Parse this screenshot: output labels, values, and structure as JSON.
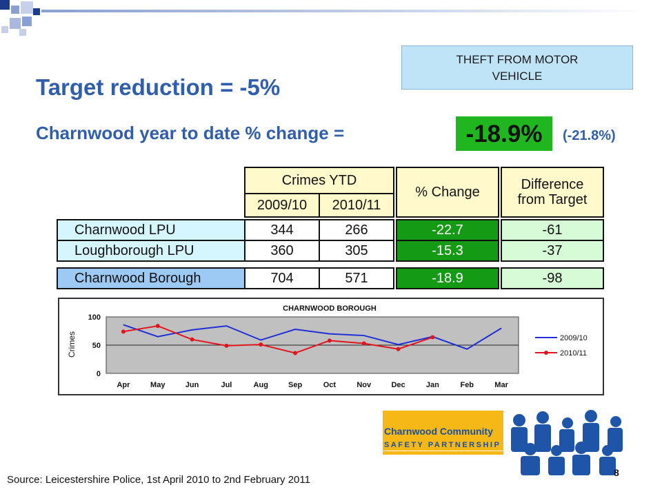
{
  "header": {
    "title_line1": "THEFT FROM MOTOR",
    "title_line2": "VEHICLE",
    "target": "Target reduction = -5%",
    "ytd_label": "Charnwood year to date % change =",
    "ytd_value": "-18.9%",
    "ytd_prior": "(-21.8%)"
  },
  "table": {
    "group_header": "Crimes YTD",
    "col_2009": "2009/10",
    "col_2010": "2010/11",
    "col_change": "% Change",
    "col_diff_line1": "Difference",
    "col_diff_line2": "from Target",
    "rows": [
      {
        "name": "Charnwood LPU",
        "y2009": "344",
        "y2010": "266",
        "change": "-22.7",
        "diff": "-61"
      },
      {
        "name": "Loughborough LPU",
        "y2009": "360",
        "y2010": "305",
        "change": "-15.3",
        "diff": "-37"
      },
      {
        "name": "Charnwood Borough",
        "y2009": "704",
        "y2010": "571",
        "change": "-18.9",
        "diff": "-98"
      }
    ]
  },
  "colors": {
    "heading_blue": "#2f5eac",
    "series_2009": "#1f2fd6",
    "series_2010": "#e0151e",
    "change_green": "#159a15"
  },
  "chart_data": {
    "type": "line",
    "title": "CHARNWOOD BOROUGH",
    "ylabel": "Crimes",
    "xlabel": "",
    "ylim": [
      0,
      100
    ],
    "yticks": [
      0,
      50,
      100
    ],
    "grid": true,
    "legend": "right",
    "categories": [
      "Apr",
      "May",
      "Jun",
      "Jul",
      "Aug",
      "Sep",
      "Oct",
      "Nov",
      "Dec",
      "Jan",
      "Feb",
      "Mar"
    ],
    "series": [
      {
        "name": "2009/10",
        "values": [
          86,
          65,
          77,
          84,
          59,
          78,
          70,
          67,
          51,
          65,
          43,
          80
        ]
      },
      {
        "name": "2010/11",
        "values": [
          74,
          84,
          60,
          49,
          51,
          36,
          58,
          53,
          43,
          64,
          null,
          null
        ]
      }
    ]
  },
  "logo": {
    "line1": "Charnwood Community",
    "line2": "SAFETY PARTNERSHIP"
  },
  "footer": {
    "source": "Source: Leicestershire Police, 1st April 2010 to 2nd February 2011",
    "page": "8"
  }
}
